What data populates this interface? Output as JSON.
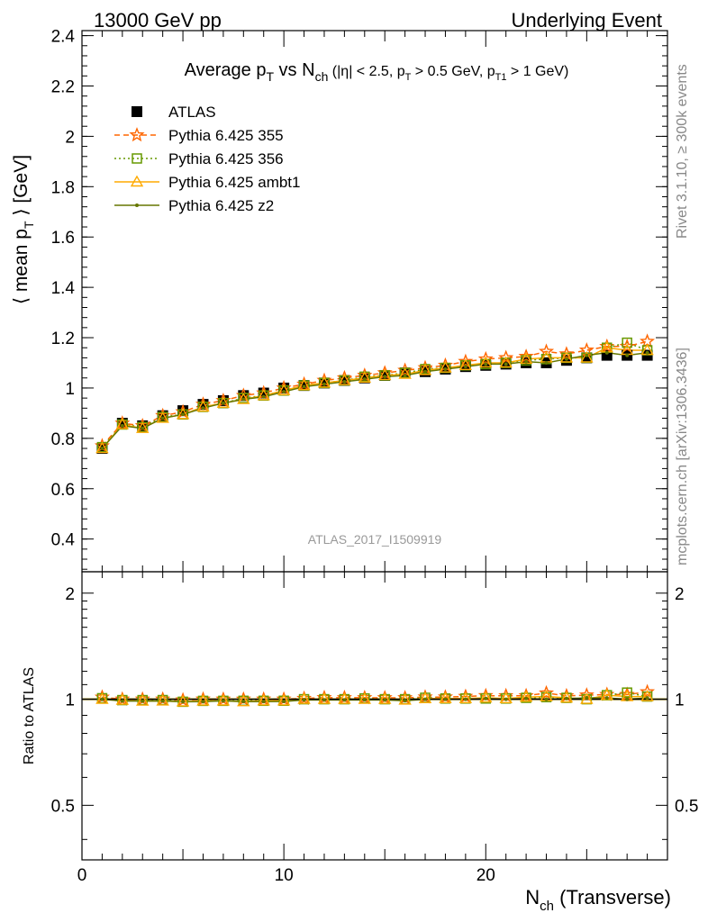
{
  "header": {
    "left": "13000 GeV pp",
    "right": "Underlying Event"
  },
  "side_labels": {
    "rivet": "Rivet 3.1.10, ≥ 300k events",
    "mcplots": "mcplots.cern.ch [arXiv:1306.3436]"
  },
  "analysis_id": "ATLAS_2017_I1509919",
  "chart_data": [
    {
      "type": "scatter",
      "panel": "main",
      "title_parts": {
        "t1": "Average p",
        "t1sub": "T",
        "t2": " vs N",
        "t2sub": "ch",
        "t3": " (|η| < 2.5, p",
        "t3sub": "T",
        "t4": " > 0.5 GeV, p",
        "t4sub": "T1",
        "t5": " > 1 GeV)"
      },
      "ylabel_parts": {
        "pre": "⟨ mean p",
        "sub": "T",
        "post": " ⟩ [GeV]"
      },
      "xlim": [
        0,
        29
      ],
      "ylim": [
        0.27,
        2.42
      ],
      "yticks": [
        0.4,
        0.6,
        0.8,
        1,
        1.2,
        1.4,
        1.6,
        1.8,
        2,
        2.2,
        2.4
      ],
      "ytick_labels": [
        "0.4",
        "0.6",
        "0.8",
        "1",
        "1.2",
        "1.4",
        "1.6",
        "1.8",
        "2",
        "2.2",
        "2.4"
      ],
      "x": [
        1,
        2,
        3,
        4,
        5,
        6,
        7,
        8,
        9,
        10,
        11,
        12,
        13,
        14,
        15,
        16,
        17,
        18,
        19,
        20,
        21,
        22,
        23,
        24,
        25,
        26,
        27,
        28
      ],
      "series": [
        {
          "name": "ATLAS",
          "color": "#000000",
          "marker": "square",
          "values": [
            0.76,
            0.86,
            0.85,
            0.89,
            0.91,
            0.935,
            0.95,
            0.97,
            0.98,
            1.0,
            1.01,
            1.02,
            1.03,
            1.04,
            1.05,
            1.06,
            1.065,
            1.075,
            1.085,
            1.09,
            1.095,
            1.1,
            1.1,
            1.11,
            1.12,
            1.13,
            1.13,
            1.13
          ]
        },
        {
          "name": "Pythia 6.425 355",
          "color": "#ff6600",
          "marker": "star",
          "dash": "6,4",
          "values": [
            0.77,
            0.86,
            0.85,
            0.89,
            0.905,
            0.935,
            0.95,
            0.97,
            0.98,
            1.0,
            1.015,
            1.03,
            1.04,
            1.05,
            1.06,
            1.07,
            1.08,
            1.09,
            1.105,
            1.115,
            1.12,
            1.125,
            1.145,
            1.135,
            1.15,
            1.165,
            1.165,
            1.185
          ]
        },
        {
          "name": "Pythia 6.425 356",
          "color": "#669900",
          "marker": "open-square",
          "dash": "2,3",
          "values": [
            0.765,
            0.855,
            0.845,
            0.885,
            0.895,
            0.925,
            0.94,
            0.96,
            0.97,
            0.99,
            1.01,
            1.02,
            1.03,
            1.045,
            1.05,
            1.06,
            1.075,
            1.08,
            1.09,
            1.095,
            1.1,
            1.11,
            1.115,
            1.12,
            1.12,
            1.16,
            1.18,
            1.15
          ]
        },
        {
          "name": "Pythia 6.425 ambt1",
          "color": "#ffaa00",
          "marker": "open-triangle",
          "dash": "",
          "values": [
            0.76,
            0.855,
            0.84,
            0.88,
            0.895,
            0.925,
            0.94,
            0.955,
            0.97,
            0.99,
            1.01,
            1.02,
            1.03,
            1.04,
            1.05,
            1.055,
            1.07,
            1.08,
            1.09,
            1.1,
            1.1,
            1.115,
            1.12,
            1.12,
            1.12,
            1.16,
            1.15,
            1.15
          ]
        },
        {
          "name": "Pythia 6.425 z2",
          "color": "#667700",
          "marker": "dot",
          "dash": "",
          "values": [
            0.76,
            0.85,
            0.84,
            0.88,
            0.895,
            0.92,
            0.94,
            0.955,
            0.965,
            0.985,
            1.005,
            1.015,
            1.025,
            1.035,
            1.045,
            1.05,
            1.065,
            1.075,
            1.085,
            1.095,
            1.095,
            1.105,
            1.1,
            1.115,
            1.13,
            1.14,
            1.13,
            1.14
          ]
        }
      ]
    },
    {
      "type": "scatter",
      "panel": "ratio",
      "ylabel": "Ratio to ATLAS",
      "xlabel_parts": {
        "pre": "N",
        "sub": "ch",
        "post": " (Transverse)"
      },
      "xlim": [
        0,
        29
      ],
      "xticks": [
        0,
        10,
        20
      ],
      "xtick_labels": [
        "0",
        "10",
        "20"
      ],
      "ylim": [
        0.35,
        2.3
      ],
      "ylog": true,
      "yticks": [
        0.5,
        1,
        2
      ],
      "ytick_labels": [
        "0.5",
        "1",
        "2"
      ]
    }
  ]
}
